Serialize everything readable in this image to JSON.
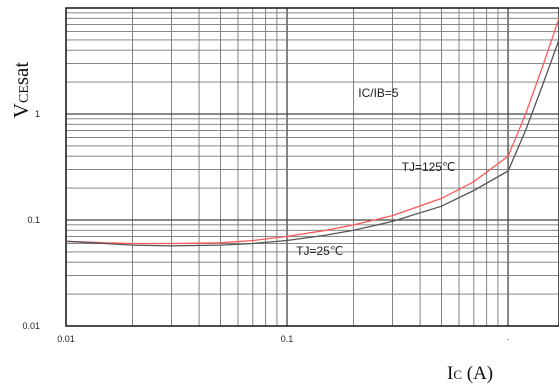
{
  "chart_data": {
    "type": "line",
    "title": "",
    "xlabel": "Ic (A)",
    "xlabel_main": "I",
    "xlabel_sub": "C",
    "xlabel_rest": " (A)",
    "ylabel": "VCEsat",
    "ylabel_main": "V",
    "ylabel_sub": "CE",
    "ylabel_rest": "sat",
    "x_scale": "log",
    "y_scale": "log",
    "xlim": [
      0.01,
      1.7
    ],
    "ylim": [
      0.01,
      10
    ],
    "x_ticks": [
      {
        "value": 0.01,
        "label": "0.01"
      },
      {
        "value": 0.1,
        "label": "0.1"
      },
      {
        "value": 1,
        "label": "·"
      }
    ],
    "y_ticks": [
      {
        "value": 0.01,
        "label": "0.01"
      },
      {
        "value": 0.1,
        "label": "0.1"
      },
      {
        "value": 1,
        "label": "1"
      }
    ],
    "grid": true,
    "annotations": [
      {
        "text": "IC/IB=5",
        "x": 0.21,
        "y": 1.45
      },
      {
        "text": "TJ=125℃",
        "x": 0.33,
        "y": 0.29
      },
      {
        "text": "TJ=25℃",
        "x": 0.11,
        "y": 0.047
      }
    ],
    "series": [
      {
        "color": "#ff5a5a",
        "x": [
          0.01,
          0.015,
          0.02,
          0.03,
          0.05,
          0.07,
          0.1,
          0.15,
          0.2,
          0.3,
          0.5,
          0.7,
          1.0,
          1.2,
          1.45,
          1.7
        ],
        "y": [
          0.063,
          0.061,
          0.06,
          0.06,
          0.061,
          0.064,
          0.07,
          0.08,
          0.09,
          0.11,
          0.16,
          0.23,
          0.4,
          1.0,
          3.0,
          8.0
        ]
      },
      {
        "color": "#555555",
        "x": [
          0.01,
          0.015,
          0.02,
          0.03,
          0.05,
          0.07,
          0.1,
          0.15,
          0.2,
          0.3,
          0.5,
          0.7,
          1.0,
          1.2,
          1.45,
          1.7
        ],
        "y": [
          0.063,
          0.06,
          0.058,
          0.057,
          0.058,
          0.06,
          0.064,
          0.072,
          0.08,
          0.097,
          0.135,
          0.19,
          0.29,
          0.7,
          2.0,
          5.0
        ]
      }
    ]
  }
}
